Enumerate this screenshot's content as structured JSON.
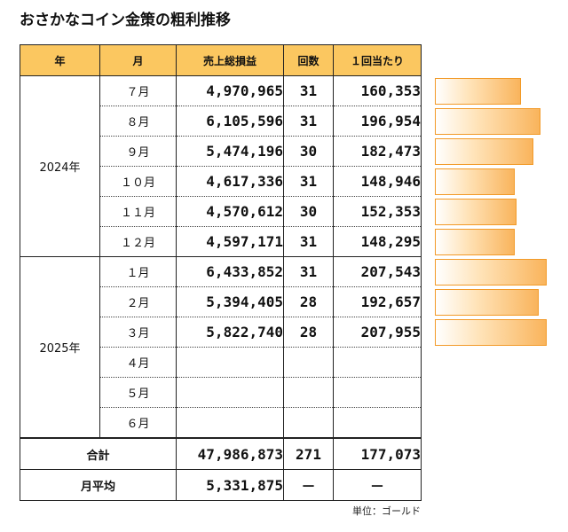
{
  "title": "おさかなコイン金策の粗利推移",
  "headers": {
    "year": "年",
    "month": "月",
    "sales": "売上総損益",
    "count": "回数",
    "per": "１回当たり"
  },
  "years": [
    "2024年",
    "2025年"
  ],
  "rows": [
    {
      "month": "７月",
      "sales": "4,970,965",
      "count": "31",
      "per": "160,353"
    },
    {
      "month": "８月",
      "sales": "6,105,596",
      "count": "31",
      "per": "196,954"
    },
    {
      "month": "９月",
      "sales": "5,474,196",
      "count": "30",
      "per": "182,473"
    },
    {
      "month": "１０月",
      "sales": "4,617,336",
      "count": "31",
      "per": "148,946"
    },
    {
      "month": "１１月",
      "sales": "4,570,612",
      "count": "30",
      "per": "152,353"
    },
    {
      "month": "１２月",
      "sales": "4,597,171",
      "count": "31",
      "per": "148,295"
    },
    {
      "month": "１月",
      "sales": "6,433,852",
      "count": "31",
      "per": "207,543"
    },
    {
      "month": "２月",
      "sales": "5,394,405",
      "count": "28",
      "per": "192,657"
    },
    {
      "month": "３月",
      "sales": "5,822,740",
      "count": "28",
      "per": "207,955"
    },
    {
      "month": "４月",
      "sales": "",
      "count": "",
      "per": ""
    },
    {
      "month": "５月",
      "sales": "",
      "count": "",
      "per": ""
    },
    {
      "month": "６月",
      "sales": "",
      "count": "",
      "per": ""
    }
  ],
  "total": {
    "label": "合計",
    "sales": "47,986,873",
    "count": "271",
    "per": "177,073"
  },
  "average": {
    "label": "月平均",
    "sales": "5,331,875",
    "count": "－",
    "per": "－"
  },
  "unit": "単位：ゴールド",
  "bars": {
    "values": [
      160353,
      196954,
      182473,
      148946,
      152353,
      148295,
      207543,
      192657,
      207955
    ],
    "max": 207955,
    "border_color": "#f29a28",
    "fill_color": "#f9b45c"
  }
}
